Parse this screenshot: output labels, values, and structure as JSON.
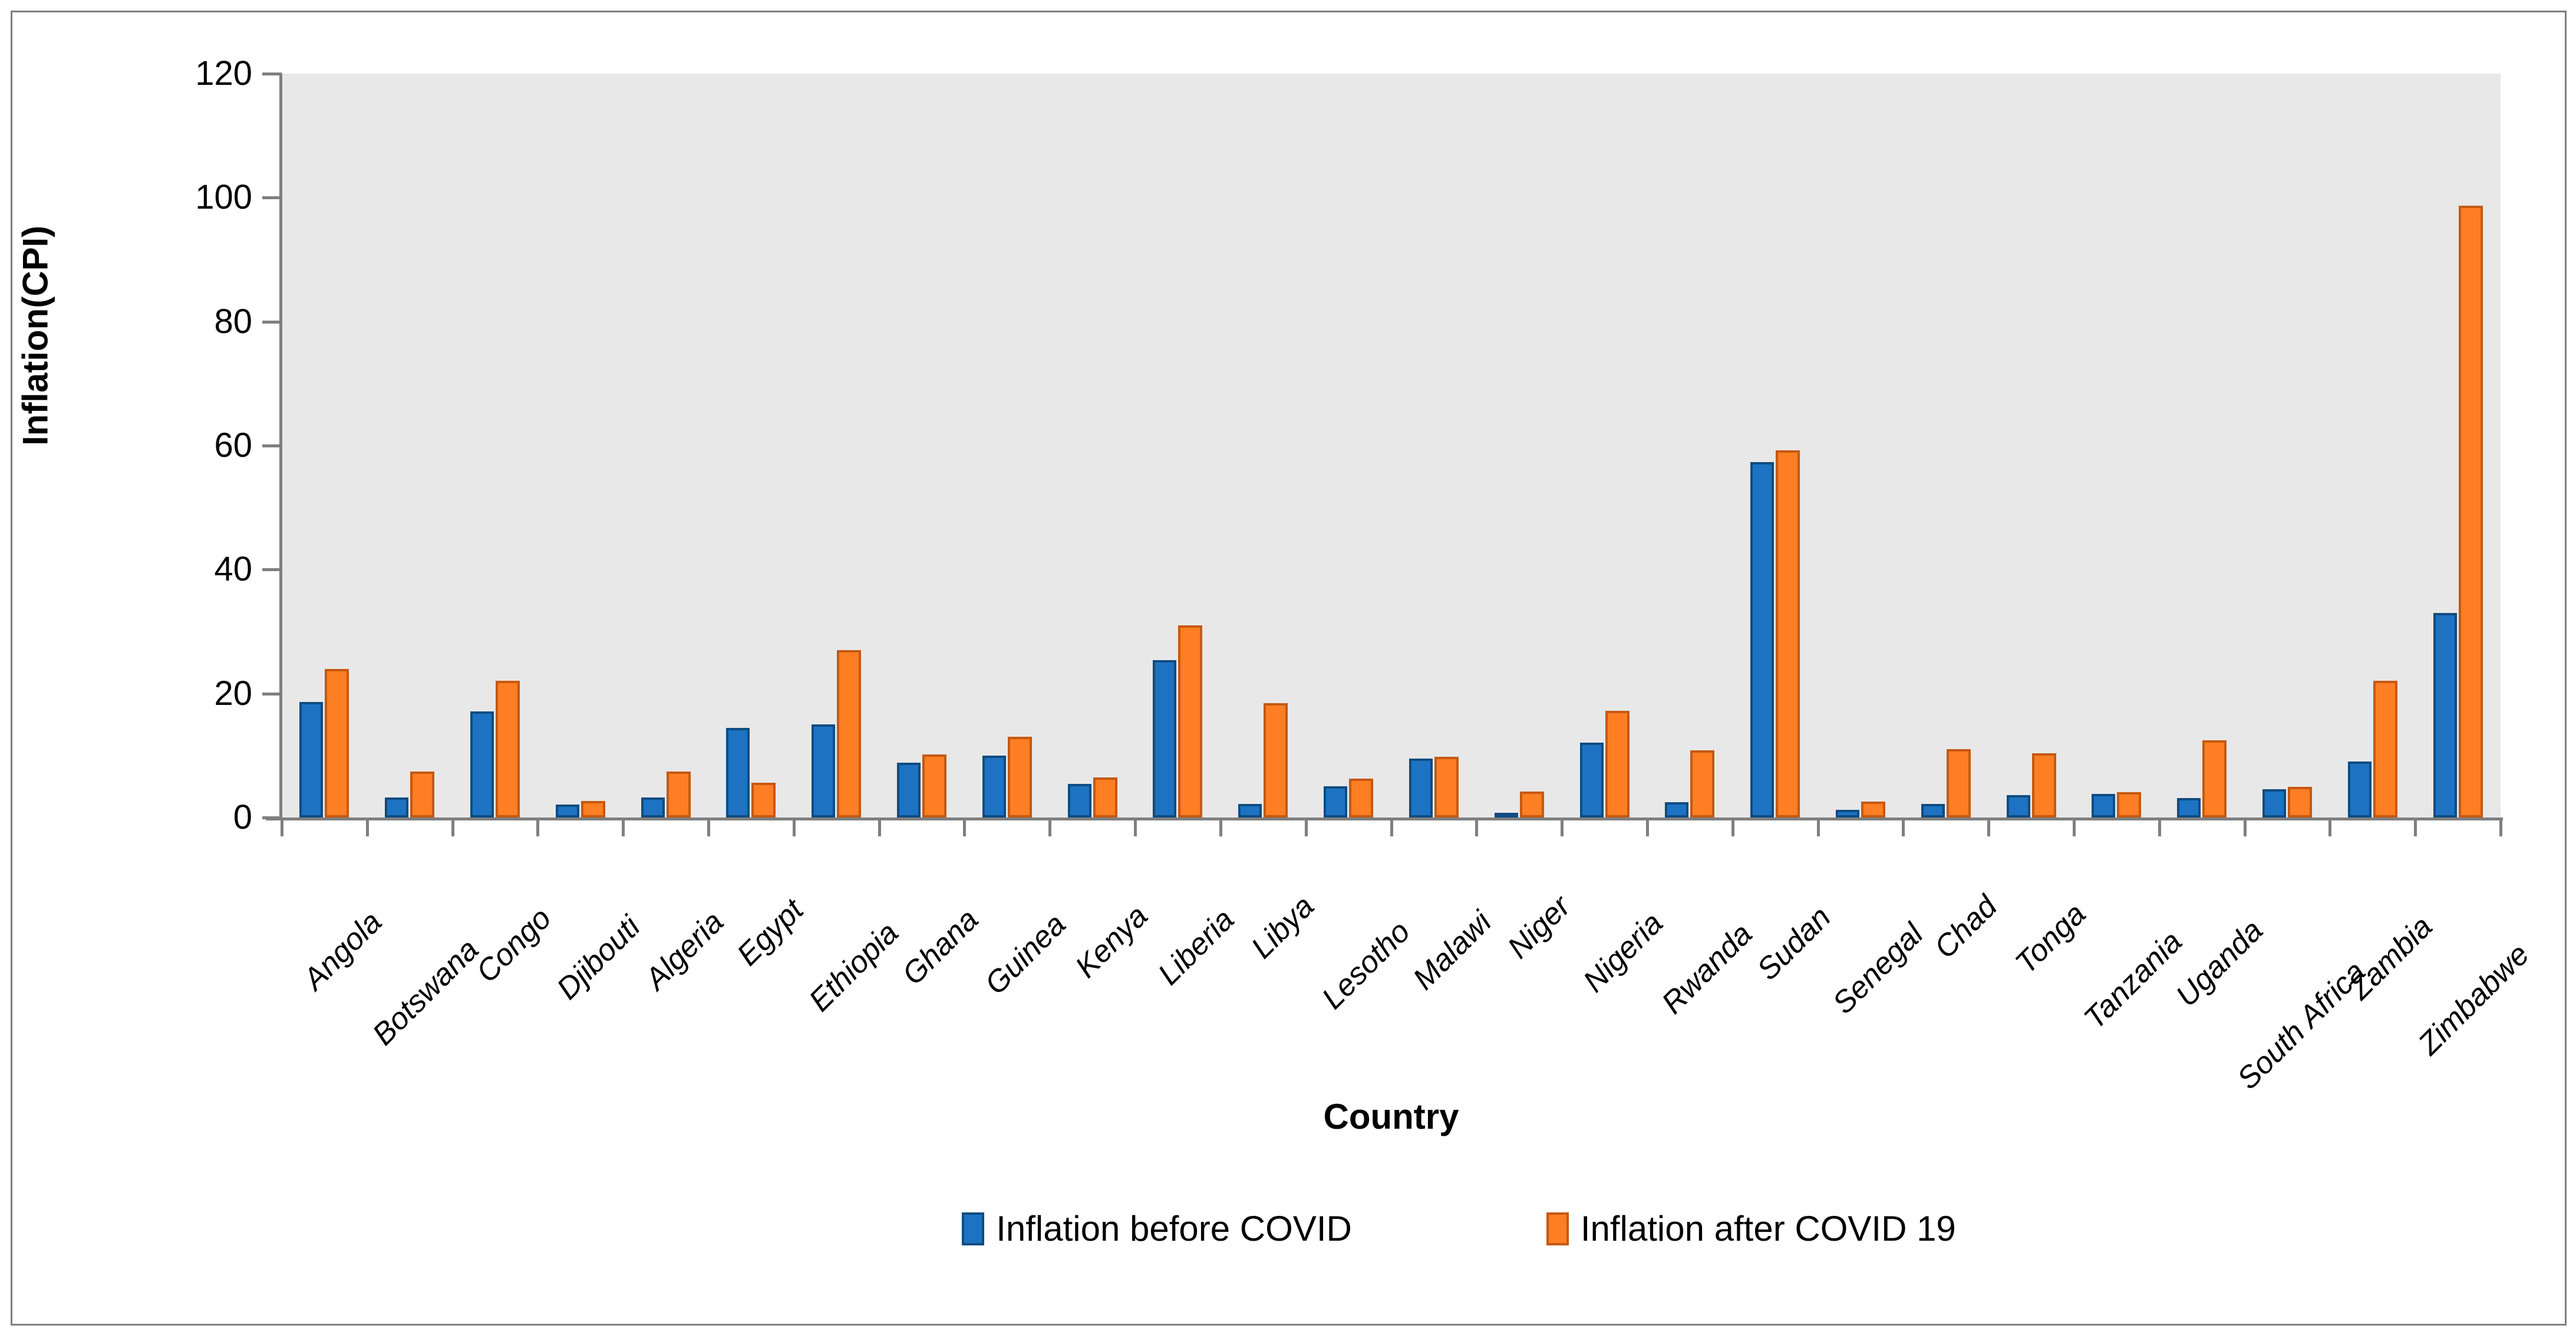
{
  "figure": {
    "kind": "clustered-column-chart",
    "background": "#ffffff",
    "border_color": "#7f7f7f",
    "plot_background": "#e8e8e8",
    "axis_color": "#7f7f7f"
  },
  "chart_data": {
    "type": "bar",
    "title": "",
    "xlabel": "Country",
    "ylabel": "Inflation(CPI)",
    "ylim": [
      0,
      120
    ],
    "yticks": [
      0,
      20,
      40,
      60,
      80,
      100,
      120
    ],
    "grid": false,
    "legend_position": "bottom",
    "categories": [
      "Angola",
      "Botswana",
      "Congo",
      "Djibouti",
      "Algeria",
      "Egypt",
      "Ethiopia",
      "Ghana",
      "Guinea",
      "Kenya",
      "Liberia",
      "Libya",
      "Lesotho",
      "Malawi",
      "Niger",
      "Nigeria",
      "Rwanda",
      "Sudan",
      "Senegal",
      "Chad",
      "Tonga",
      "Tanzania",
      "Uganda",
      "South Africa",
      "Zambia",
      "Zimbabwe"
    ],
    "series": [
      {
        "name": "Inflation before COVID",
        "color": "#1d73c2",
        "border_color": "#0f4c81",
        "values": [
          18.6,
          3.2,
          17.1,
          2.1,
          3.2,
          14.5,
          15.0,
          8.8,
          10.0,
          5.4,
          25.4,
          2.2,
          5.0,
          9.5,
          0.8,
          12.1,
          2.5,
          57.3,
          1.2,
          2.2,
          3.6,
          3.8,
          3.1,
          4.6,
          9.0,
          33.0
        ]
      },
      {
        "name": "Inflation after COVID 19",
        "color": "#fd7e23",
        "border_color": "#c55911",
        "values": [
          24.0,
          7.4,
          22.1,
          2.7,
          7.4,
          5.6,
          27.0,
          10.2,
          13.0,
          6.5,
          31.0,
          18.4,
          6.3,
          9.8,
          4.2,
          17.2,
          10.8,
          59.2,
          2.6,
          11.0,
          10.4,
          4.1,
          12.5,
          4.9,
          22.1,
          98.7
        ]
      }
    ]
  }
}
